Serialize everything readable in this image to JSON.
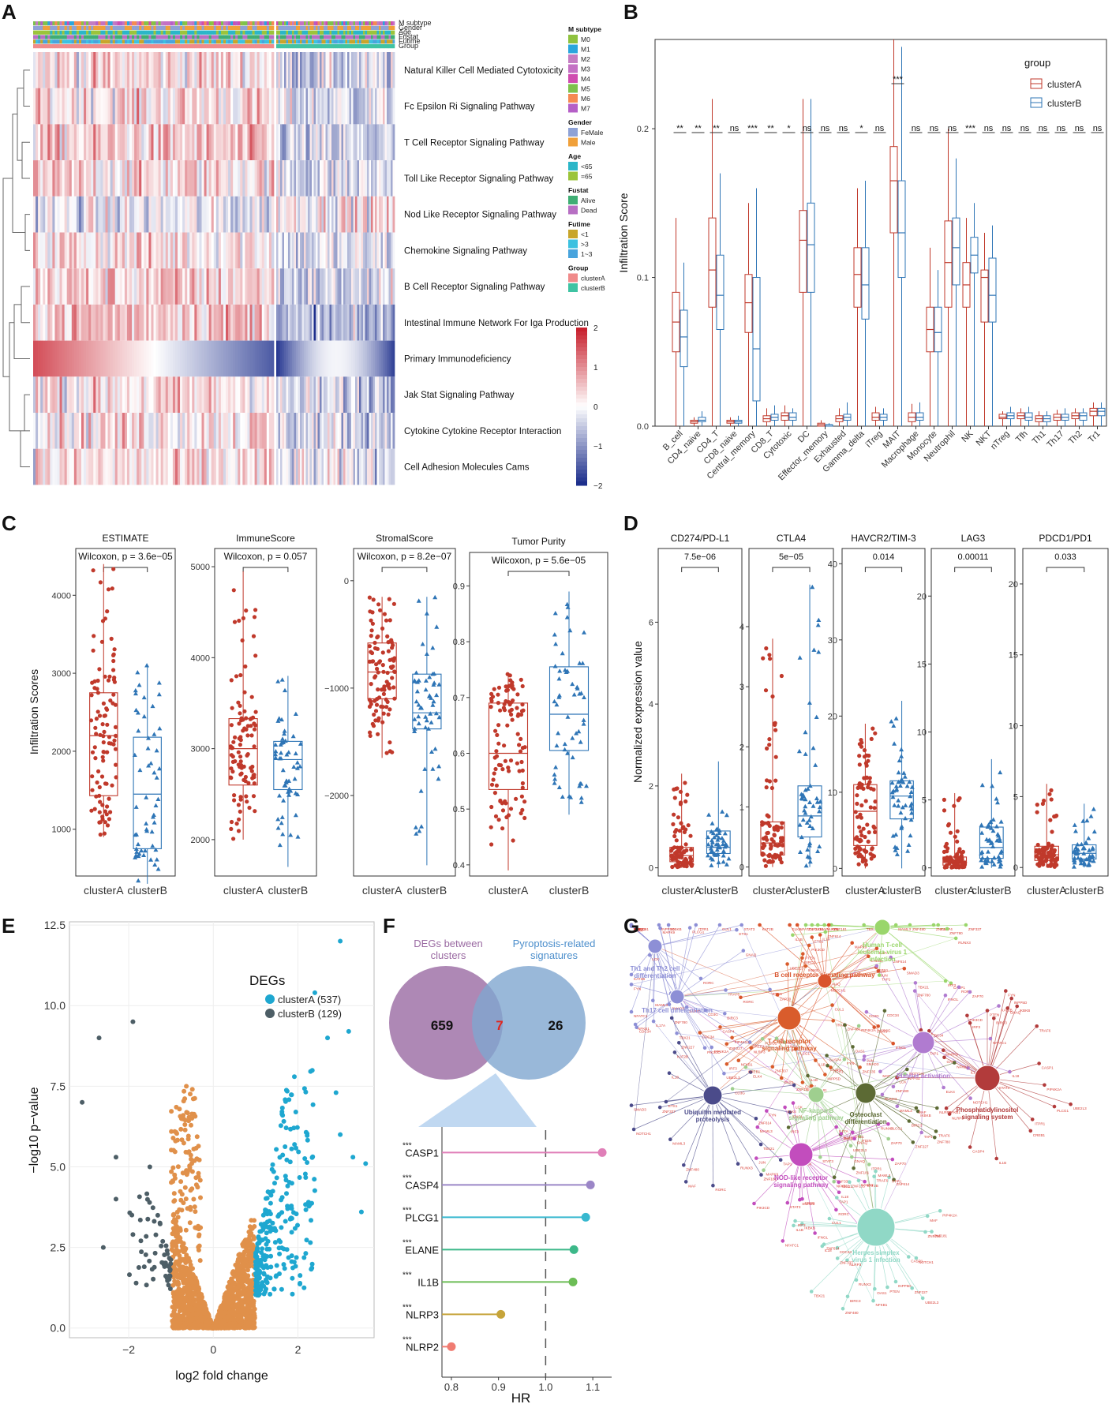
{
  "panels": {
    "A": "A",
    "B": "B",
    "C": "C",
    "D": "D",
    "E": "E",
    "F": "F",
    "G": "G"
  },
  "colors": {
    "clusterA": "#c0392b",
    "clusterB": "#2e75b6",
    "hm_high": "#c8212e",
    "hm_mid": "#ffffff",
    "hm_low": "#1d2f8c"
  },
  "chart_data": [
    {
      "id": "A",
      "type": "heatmap",
      "annotation_rows": [
        "M subtype",
        "Gender",
        "Age",
        "Fustat",
        "Futime",
        "Group"
      ],
      "rows": [
        "Natural Killer Cell Mediated Cytotoxicity",
        "Fc Epsilon Ri Signaling Pathway",
        "T Cell Receptor Signaling Pathway",
        "Toll Like Receptor Signaling Pathway",
        "Nod Like Receptor Signaling Pathway",
        "Chemokine Signaling Pathway",
        "B Cell Receptor Signaling Pathway",
        "Intestinal Immune Network For Iga Production",
        "Primary Immunodeficiency",
        "Jak Stat Signaling Pathway",
        "Cytokine Cytokine Receptor Interaction",
        "Cell Adhesion Molecules Cams"
      ],
      "row_bias_clusterA": [
        0.3,
        0.3,
        0.4,
        0.3,
        -0.2,
        0.3,
        0.4,
        0.6,
        1.2,
        0.3,
        0.3,
        0.2
      ],
      "row_bias_clusterB": [
        -0.4,
        -0.3,
        -0.5,
        -0.3,
        0.2,
        -0.3,
        -0.4,
        -0.8,
        -1.0,
        -0.4,
        -0.3,
        -0.2
      ],
      "n_clusterA": 100,
      "n_clusterB": 60,
      "legend": {
        "M subtype": {
          "title": "M subtype",
          "items": [
            "M0",
            "M1",
            "M2",
            "M3",
            "M4",
            "M5",
            "M6",
            "M7"
          ],
          "colors": [
            "#8fc23f",
            "#2aa6dd",
            "#c47dc2",
            "#c471c4",
            "#d04cb0",
            "#7ec24c",
            "#f58a52",
            "#b55fc7"
          ]
        },
        "Gender": {
          "title": "Gender",
          "items": [
            "FeMale",
            "Male"
          ],
          "colors": [
            "#8ea2d6",
            "#f0a03a"
          ]
        },
        "Age": {
          "title": "Age",
          "items": [
            "<65",
            "=65"
          ],
          "colors": [
            "#2bb6c8",
            "#9bc43a"
          ]
        },
        "Fustat": {
          "title": "Fustat",
          "items": [
            "Alive",
            "Dead"
          ],
          "colors": [
            "#3fae74",
            "#b76fc3"
          ]
        },
        "Futime": {
          "title": "Futime",
          "items": [
            "<1",
            ">3",
            "1~3"
          ],
          "colors": [
            "#c8a52b",
            "#3cc1e0",
            "#49a4dd"
          ]
        },
        "Group": {
          "title": "Group",
          "items": [
            "clusterA",
            "clusterB"
          ],
          "colors": [
            "#f08a8a",
            "#3fc3a3"
          ]
        }
      },
      "colorbar": {
        "ticks": [
          "2",
          "1",
          "0",
          "−1",
          "−2"
        ]
      }
    },
    {
      "id": "B",
      "type": "box",
      "ylabel": "Infiltration Score",
      "ylim": [
        0,
        0.26
      ],
      "yticks": [
        "0.0",
        "0.1",
        "0.2"
      ],
      "legend_title": "group",
      "series_names": [
        "clusterA",
        "clusterB"
      ],
      "categories": [
        "B_cell",
        "CD4_naive",
        "CD4_T",
        "CD8_naive",
        "Central_memory",
        "CD8_T",
        "Cytotoxic",
        "DC",
        "Effector_memory",
        "Exhausted",
        "Gamma_delta",
        "iTreg",
        "MAIT",
        "Macrophage",
        "Monocyte",
        "Neutrophil",
        "NK",
        "NKT",
        "nTreg",
        "Tfh",
        "Th1",
        "Th17",
        "Th2",
        "Tr1"
      ],
      "signif": [
        "**",
        "**",
        "**",
        "ns",
        "***",
        "**",
        "*",
        "ns",
        "ns",
        "ns",
        "*",
        "ns",
        "***",
        "ns",
        "ns",
        "ns",
        "***",
        "ns",
        "ns",
        "ns",
        "ns",
        "ns",
        "ns",
        "ns"
      ],
      "clusterA": [
        [
          0.0,
          0.05,
          0.07,
          0.09,
          0.14
        ],
        [
          0.0,
          0.002,
          0.003,
          0.004,
          0.006
        ],
        [
          0.0,
          0.08,
          0.105,
          0.14,
          0.22
        ],
        [
          0.0,
          0.002,
          0.003,
          0.004,
          0.006
        ],
        [
          0.0,
          0.063,
          0.083,
          0.102,
          0.15
        ],
        [
          0.0,
          0.003,
          0.005,
          0.007,
          0.012
        ],
        [
          0.0,
          0.004,
          0.007,
          0.009,
          0.014
        ],
        [
          0.0,
          0.09,
          0.125,
          0.145,
          0.22
        ],
        [
          0.0,
          0.0,
          0.001,
          0.002,
          0.004
        ],
        [
          0.0,
          0.003,
          0.005,
          0.007,
          0.012
        ],
        [
          0.0,
          0.08,
          0.102,
          0.12,
          0.16
        ],
        [
          0.0,
          0.004,
          0.006,
          0.009,
          0.013
        ],
        [
          0.0,
          0.13,
          0.165,
          0.188,
          0.26
        ],
        [
          0.0,
          0.003,
          0.006,
          0.009,
          0.015
        ],
        [
          0.0,
          0.05,
          0.065,
          0.08,
          0.12
        ],
        [
          0.0,
          0.08,
          0.11,
          0.138,
          0.2
        ],
        [
          0.0,
          0.08,
          0.095,
          0.11,
          0.14
        ],
        [
          0.0,
          0.07,
          0.1,
          0.105,
          0.13
        ],
        [
          0.0,
          0.005,
          0.006,
          0.008,
          0.01
        ],
        [
          0.0,
          0.005,
          0.007,
          0.009,
          0.012
        ],
        [
          0.0,
          0.003,
          0.005,
          0.007,
          0.01
        ],
        [
          0.0,
          0.004,
          0.006,
          0.008,
          0.011
        ],
        [
          0.0,
          0.005,
          0.007,
          0.009,
          0.012
        ],
        [
          0.0,
          0.007,
          0.01,
          0.012,
          0.016
        ]
      ],
      "clusterB": [
        [
          0.0,
          0.04,
          0.06,
          0.078,
          0.11
        ],
        [
          0.0,
          0.003,
          0.004,
          0.006,
          0.01
        ],
        [
          0.0,
          0.065,
          0.088,
          0.115,
          0.17
        ],
        [
          0.0,
          0.002,
          0.003,
          0.004,
          0.007
        ],
        [
          0.0,
          0.017,
          0.052,
          0.1,
          0.16
        ],
        [
          0.0,
          0.004,
          0.006,
          0.008,
          0.014
        ],
        [
          0.0,
          0.004,
          0.006,
          0.009,
          0.012
        ],
        [
          0.0,
          0.09,
          0.122,
          0.15,
          0.22
        ],
        [
          0.0,
          0.0,
          0.001,
          0.001,
          0.002
        ],
        [
          0.0,
          0.004,
          0.006,
          0.008,
          0.016
        ],
        [
          0.0,
          0.072,
          0.095,
          0.12,
          0.165
        ],
        [
          0.0,
          0.004,
          0.006,
          0.008,
          0.012
        ],
        [
          0.0,
          0.1,
          0.13,
          0.165,
          0.255
        ],
        [
          0.0,
          0.004,
          0.006,
          0.009,
          0.016
        ],
        [
          0.0,
          0.05,
          0.063,
          0.08,
          0.105
        ],
        [
          0.0,
          0.095,
          0.12,
          0.14,
          0.18
        ],
        [
          0.0,
          0.103,
          0.115,
          0.127,
          0.15
        ],
        [
          0.0,
          0.07,
          0.088,
          0.113,
          0.135
        ],
        [
          0.0,
          0.005,
          0.007,
          0.009,
          0.013
        ],
        [
          0.0,
          0.004,
          0.006,
          0.009,
          0.013
        ],
        [
          0.0,
          0.003,
          0.005,
          0.007,
          0.01
        ],
        [
          0.0,
          0.004,
          0.006,
          0.008,
          0.012
        ],
        [
          0.0,
          0.004,
          0.007,
          0.009,
          0.012
        ],
        [
          0.0,
          0.007,
          0.01,
          0.012,
          0.016
        ]
      ]
    },
    {
      "id": "C",
      "type": "box_scatter",
      "ylabel": "Infiltration Scores",
      "subplots": [
        {
          "title": "ESTIMATE",
          "stat": "Wilcoxon, p = 3.6e−05",
          "ylim": [
            400,
            4600
          ],
          "yticks": [
            1000,
            2000,
            3000,
            4000
          ],
          "clusterA": [
            900,
            1430,
            2200,
            2750,
            4400
          ],
          "clusterB": [
            300,
            750,
            1450,
            2180,
            3100
          ]
        },
        {
          "title": "ImmuneScore",
          "stat": "Wilcoxon, p = 0.057",
          "ylim": [
            1600,
            5200
          ],
          "yticks": [
            2000,
            3000,
            4000,
            5000
          ],
          "clusterA": [
            2000,
            2600,
            3000,
            3330,
            4950
          ],
          "clusterB": [
            1700,
            2550,
            2880,
            3080,
            3800
          ]
        },
        {
          "title": "StromalScore",
          "stat": "Wilcoxon, p = 8.2e−07",
          "ylim": [
            -2750,
            300
          ],
          "yticks": [
            -2000,
            -1000,
            0
          ],
          "clusterA": [
            -1650,
            -1100,
            -850,
            -580,
            -150
          ],
          "clusterB": [
            -2650,
            -1380,
            -1230,
            -870,
            -150
          ]
        },
        {
          "title": "Tumor Purity",
          "stat": "Wilcoxon, p = 5.6e−05",
          "ylim": [
            0.38,
            0.96
          ],
          "yticks": [
            0.4,
            0.5,
            0.6,
            0.7,
            0.8,
            0.9
          ],
          "clusterA": [
            0.39,
            0.535,
            0.6,
            0.69,
            0.745
          ],
          "clusterB": [
            0.49,
            0.605,
            0.67,
            0.755,
            0.89
          ]
        }
      ],
      "xticks": [
        "clusterA",
        "clusterB"
      ]
    },
    {
      "id": "D",
      "type": "box_scatter",
      "ylabel": "Normalized expression value",
      "subplots": [
        {
          "title": "CD274/PD-L1",
          "stat": "7.5e−06",
          "ylim": [
            -0.2,
            7.8
          ],
          "yticks": [
            0,
            2,
            4,
            6
          ],
          "clusterA": [
            0,
            0.15,
            0.3,
            0.5,
            2.3
          ],
          "clusterB": [
            0,
            0.35,
            0.5,
            0.9,
            2.6
          ]
        },
        {
          "title": "CTLA4",
          "stat": "5e−05",
          "ylim": [
            -0.15,
            5.3
          ],
          "yticks": [
            0,
            1,
            2,
            3,
            4
          ],
          "clusterA": [
            0,
            0.2,
            0.4,
            0.75,
            3.8
          ],
          "clusterB": [
            0,
            0.5,
            0.85,
            1.35,
            4.7
          ]
        },
        {
          "title": "HAVCR2/TIM-3",
          "stat": "0.014",
          "ylim": [
            -1,
            42
          ],
          "yticks": [
            0,
            10,
            20,
            30,
            40
          ],
          "clusterA": [
            0,
            3,
            7.5,
            11,
            19
          ],
          "clusterB": [
            0,
            6.5,
            9.5,
            11.5,
            22
          ]
        },
        {
          "title": "LAG3",
          "stat": "0.00011",
          "ylim": [
            -0.6,
            23.5
          ],
          "yticks": [
            0,
            5,
            10,
            15,
            20
          ],
          "clusterA": [
            0,
            0.2,
            0.4,
            0.8,
            5.5
          ],
          "clusterB": [
            0,
            0.7,
            1.5,
            3,
            8
          ]
        },
        {
          "title": "PDCD1/PD1",
          "stat": "0.033",
          "ylim": [
            -0.6,
            22.5
          ],
          "yticks": [
            0,
            5,
            10,
            15,
            20
          ],
          "clusterA": [
            0,
            0.5,
            0.9,
            1.5,
            5.9
          ],
          "clusterB": [
            0,
            0.6,
            1,
            1.6,
            4.5
          ]
        }
      ],
      "xticks": [
        "clusterA",
        "clusterB"
      ]
    },
    {
      "id": "E",
      "type": "scatter",
      "title": "",
      "xlabel": "log2 fold change",
      "ylabel": "−log10 p−value",
      "xlim": [
        -3.4,
        3.8
      ],
      "ylim": [
        -0.3,
        12.6
      ],
      "xticks": [
        -2,
        0,
        2
      ],
      "yticks": [
        "0.0",
        "2.5",
        "5.0",
        "7.5",
        "10.0",
        "12.5"
      ],
      "legend_title": "DEGs",
      "legend": [
        {
          "label": "clusterA (537)",
          "color": "#1ea7d0"
        },
        {
          "label": "clusterB (129)",
          "color": "#4d5e66"
        }
      ],
      "ns_color": "#e0904a"
    },
    {
      "id": "F",
      "type": "venn_lollipop",
      "venn": {
        "left_label": "DEGs between\nclusters",
        "right_label": "Pyroptosis-related\nsignatures",
        "left_only": "659",
        "overlap": "7",
        "right_only": "26"
      },
      "xlabel": "HR",
      "xlim": [
        0.78,
        1.14
      ],
      "xticks": [
        "0.8",
        "0.9",
        "1.0",
        "1.1"
      ],
      "genes": [
        {
          "name": "CASP1",
          "hr": 1.12,
          "sig": "***",
          "color": "#e07fb8"
        },
        {
          "name": "CASP4",
          "hr": 1.095,
          "sig": "***",
          "color": "#9b86c7"
        },
        {
          "name": "PLCG1",
          "hr": 1.085,
          "sig": "***",
          "color": "#38b8cf"
        },
        {
          "name": "ELANE",
          "hr": 1.06,
          "sig": "***",
          "color": "#3cb889"
        },
        {
          "name": "IL1B",
          "hr": 1.058,
          "sig": "***",
          "color": "#6cbd56"
        },
        {
          "name": "NLRP3",
          "hr": 0.905,
          "sig": "***",
          "color": "#c6a43a"
        },
        {
          "name": "NLRP2",
          "hr": 0.8,
          "sig": "***",
          "color": "#f07c72"
        }
      ]
    },
    {
      "id": "G",
      "type": "network",
      "hubs": [
        {
          "label": "Th1 and Th2 cell\ndifferentiation",
          "color": "#8d8fd6",
          "size": 9
        },
        {
          "label": "Th17 cell differentiation",
          "color": "#8d8fd6",
          "size": 9
        },
        {
          "label": "Human T-cell\nleukemia virus 1\ninfection",
          "color": "#9ad66b",
          "size": 10
        },
        {
          "label": "B cell receptor signaling pathway",
          "color": "#d9542c",
          "size": 9
        },
        {
          "label": "T cell receptor\nsignaling pathway",
          "color": "#d95c2c",
          "size": 15
        },
        {
          "label": "Platelet activation",
          "color": "#b07bd0",
          "size": 14
        },
        {
          "label": "Phosphatidylinositol\nsignaling system",
          "color": "#b23b3b",
          "size": 16
        },
        {
          "label": "Ubiquitin mediated\nproteolysis",
          "color": "#4b4b8a",
          "size": 12
        },
        {
          "label": "NF-kappa B\nsignaling pathway",
          "color": "#9fcf8f",
          "size": 10
        },
        {
          "label": "Osteoclast\ndifferentiation",
          "color": "#5c6a34",
          "size": 13
        },
        {
          "label": "NOD-like receptor\nsignaling pathway",
          "color": "#c24dbd",
          "size": 15
        },
        {
          "label": "Herpes simplex\nvirus 1 infection",
          "color": "#90d8c6",
          "size": 24
        }
      ],
      "gene_labels": [
        "NOTCH1",
        "MAF",
        "RUNX3",
        "MAML3",
        "TBX21",
        "IL18",
        "ELK4",
        "ETS1",
        "IFNGL",
        "KAT2B",
        "SMAD3",
        "RORC",
        "STAT3",
        "IL17A",
        "JUN",
        "NFATC1",
        "CD3G",
        "ZAP70",
        "LCK",
        "FYN",
        "PLCG1",
        "MAPK9",
        "CREB1",
        "GNAQ",
        "PIK3CD",
        "ITPR1",
        "PTEN",
        "INPP5D",
        "PIP4K2A",
        "UBE2L3",
        "CUL1",
        "CDC34",
        "BIRC3",
        "TRAF6",
        "NFKB1",
        "IKBKB",
        "CASP1",
        "CASP4",
        "IL1B",
        "NLRP3",
        "OAS1",
        "IRF3",
        "ZNF135",
        "ZNF181",
        "ZNF227",
        "ZNF337",
        "ZNF480",
        "ZNF614",
        "ZNF780",
        "TAP1"
      ]
    }
  ]
}
